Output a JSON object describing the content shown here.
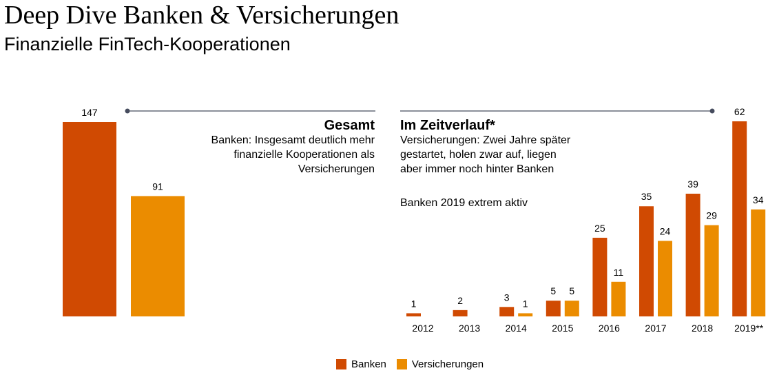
{
  "title": "Deep Dive Banken & Versicherungen",
  "subtitle": "Finanzielle FinTech-Kooperationen",
  "colors": {
    "banken": "#d04a02",
    "versicherungen": "#eb8c00",
    "rule": "#464c5e"
  },
  "gesamt": {
    "heading": "Gesamt",
    "text": "Banken: Insgesamt deutlich mehr finanzielle Kooperationen als Versicherungen"
  },
  "zeitverlauf": {
    "heading": "Im Zeitverlauf*",
    "text": "Versicherungen: Zwei Jahre später gestartet, holen zwar auf, liegen aber immer noch hinter Banken",
    "text2": "Banken 2019 extrem aktiv"
  },
  "legend": {
    "banken": "Banken",
    "versicherungen": "Versicherungen"
  },
  "chart_data": [
    {
      "type": "bar",
      "categories": [
        "Gesamt"
      ],
      "series": [
        {
          "name": "Banken",
          "values": [
            147
          ]
        },
        {
          "name": "Versicherungen",
          "values": [
            91
          ]
        }
      ]
    },
    {
      "type": "bar",
      "categories": [
        "2012",
        "2013",
        "2014",
        "2015",
        "2016",
        "2017",
        "2018",
        "2019**"
      ],
      "series": [
        {
          "name": "Banken",
          "values": [
            1,
            2,
            3,
            5,
            25,
            35,
            39,
            62
          ]
        },
        {
          "name": "Versicherungen",
          "values": [
            0,
            0,
            1,
            5,
            11,
            24,
            29,
            34
          ]
        }
      ]
    }
  ]
}
